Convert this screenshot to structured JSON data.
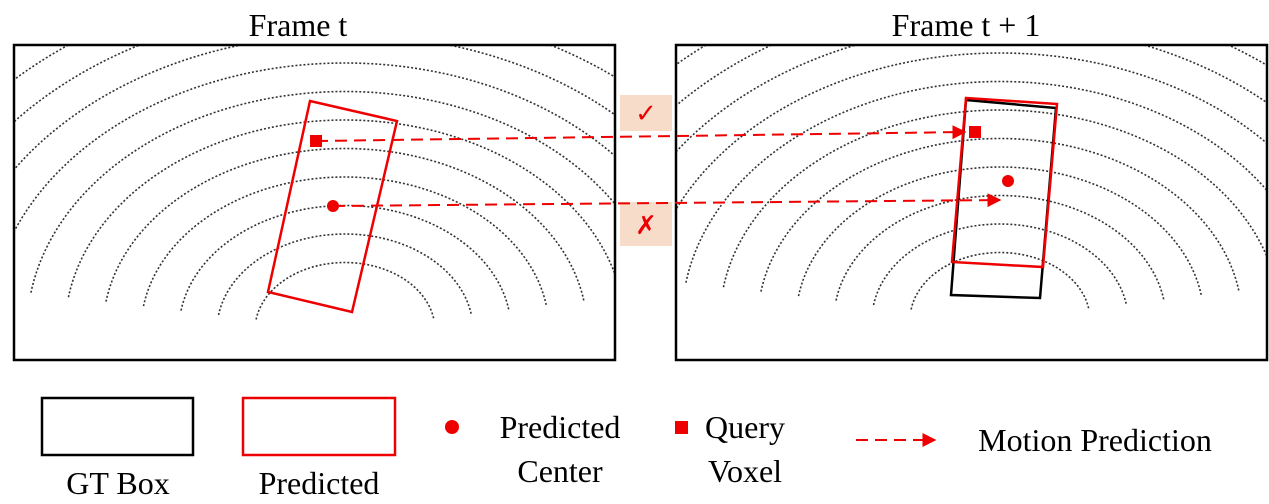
{
  "frames": [
    {
      "title": "Frame t"
    },
    {
      "title": "Frame t + 1"
    }
  ],
  "match_marks": [
    "✓",
    "✗"
  ],
  "legend": [
    {
      "label": "GT Box"
    },
    {
      "label": "Predicted"
    },
    {
      "label": [
        "Predicted",
        "Center"
      ]
    },
    {
      "label": [
        "Query",
        "Voxel"
      ]
    },
    {
      "label": "Motion Prediction"
    }
  ]
}
